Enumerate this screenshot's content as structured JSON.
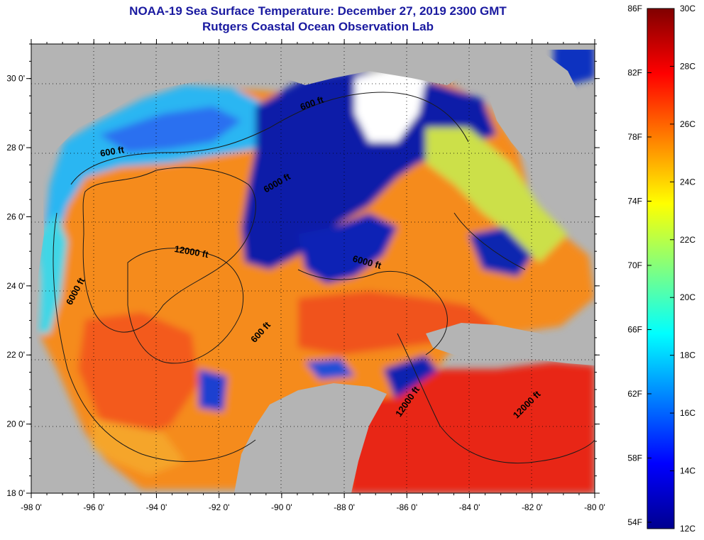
{
  "header": {
    "title": "NOAA-19 Sea Surface Temperature:  December 27, 2019 2300 GMT",
    "subtitle": "Rutgers Coastal Ocean Observation Lab"
  },
  "map": {
    "lon_range": [
      -98,
      -80
    ],
    "lat_range": [
      18,
      31
    ],
    "lon_ticks": [
      "-98 0'",
      "-96 0'",
      "-94 0'",
      "-92 0'",
      "-90 0'",
      "-88 0'",
      "-86 0'",
      "-84 0'",
      "-82 0'",
      "-80 0'"
    ],
    "lat_ticks": [
      "18 0'",
      "20 0'",
      "22 0'",
      "24 0'",
      "26 0'",
      "28 0'",
      "30 0'"
    ],
    "land_color": "#b4b4b4",
    "grid": "dotted"
  },
  "contours": [
    {
      "label": "600 ft",
      "lon": -95.4,
      "lat": 27.8,
      "angle": -10
    },
    {
      "label": "600 ft",
      "lon": -89.0,
      "lat": 29.2,
      "angle": -20
    },
    {
      "label": "6000 ft",
      "lon": -90.1,
      "lat": 26.9,
      "angle": -30
    },
    {
      "label": "12000 ft",
      "lon": -92.9,
      "lat": 24.9,
      "angle": 10
    },
    {
      "label": "6000 ft",
      "lon": -96.5,
      "lat": 23.8,
      "angle": -62
    },
    {
      "label": "600 ft",
      "lon": -90.6,
      "lat": 22.6,
      "angle": -48
    },
    {
      "label": "6000 ft",
      "lon": -87.3,
      "lat": 24.6,
      "angle": 15
    },
    {
      "label": "12000 ft",
      "lon": -85.9,
      "lat": 20.6,
      "angle": -55
    },
    {
      "label": "12000 ft",
      "lon": -82.1,
      "lat": 20.5,
      "angle": -45
    }
  ],
  "colorbar": {
    "min_c": 12,
    "max_c": 30,
    "celsius_labels": [
      "12C",
      "14C",
      "16C",
      "18C",
      "20C",
      "22C",
      "24C",
      "26C",
      "28C",
      "30C"
    ],
    "fahrenheit_labels": [
      "54F",
      "58F",
      "62F",
      "66F",
      "70F",
      "74F",
      "78F",
      "82F",
      "86F"
    ],
    "colors": [
      "#00008f",
      "#0000ff",
      "#0080ff",
      "#00ffff",
      "#80ff80",
      "#ffff00",
      "#ff8000",
      "#ff0000",
      "#800000"
    ]
  }
}
